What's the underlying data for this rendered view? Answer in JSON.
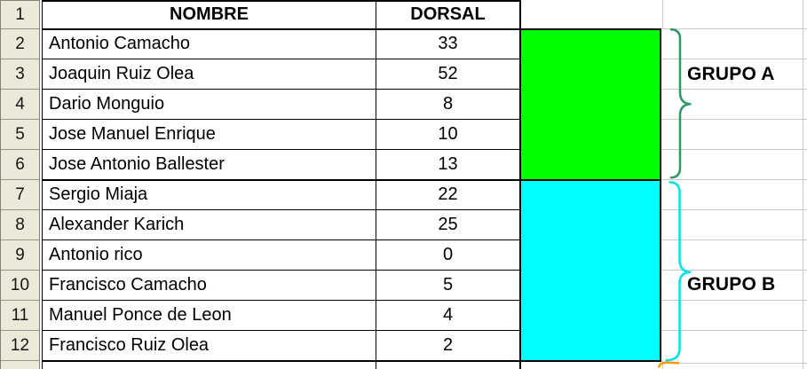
{
  "sheet": {
    "name_header": "NOMBRE",
    "dorsal_header": "DORSAL",
    "row_numbers": [
      "1",
      "2",
      "3",
      "4",
      "5",
      "6",
      "7",
      "8",
      "9",
      "10",
      "11",
      "12"
    ],
    "players": [
      {
        "name": "Antonio Camacho",
        "dorsal": "33"
      },
      {
        "name": "Joaquin Ruiz Olea",
        "dorsal": "52"
      },
      {
        "name": "Dario Monguio",
        "dorsal": "8"
      },
      {
        "name": "Jose Manuel Enrique",
        "dorsal": "10"
      },
      {
        "name": "Jose Antonio Ballester",
        "dorsal": "13"
      },
      {
        "name": "Sergio Miaja",
        "dorsal": "22"
      },
      {
        "name": "Alexander Karich",
        "dorsal": "25"
      },
      {
        "name": "Antonio rico",
        "dorsal": "0"
      },
      {
        "name": "Francisco Camacho",
        "dorsal": "5"
      },
      {
        "name": "Manuel Ponce de Leon",
        "dorsal": "4"
      },
      {
        "name": "Francisco Ruiz Olea",
        "dorsal": "2"
      }
    ],
    "groups": [
      {
        "label": "GRUPO A",
        "rows": "2-6",
        "fill_color": "#00FF00",
        "brace_color": "#2E9966"
      },
      {
        "label": "GRUPO B",
        "rows": "7-12",
        "fill_color": "#00FFFF",
        "brace_color": "#00E4EA"
      }
    ],
    "partial_next_brace_color": "#FF9600",
    "colors": {
      "row_header_bg": "#ECE9D8",
      "gridline": "#c9c9c9",
      "table_border": "#000000"
    }
  }
}
